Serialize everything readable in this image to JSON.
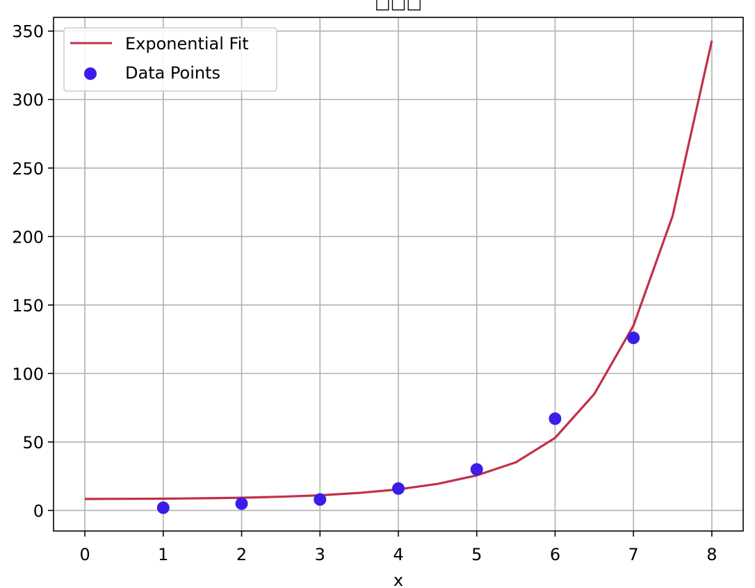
{
  "chart_data": {
    "type": "scatter",
    "title": "□□□",
    "xlabel": "x",
    "ylabel": "",
    "xlim": [
      -0.4,
      8.4
    ],
    "ylim": [
      -15,
      360
    ],
    "x_ticks": [
      0,
      1,
      2,
      3,
      4,
      5,
      6,
      7,
      8
    ],
    "y_ticks": [
      0,
      50,
      100,
      150,
      200,
      250,
      300,
      350
    ],
    "grid": true,
    "legend_position": "top-left",
    "series": [
      {
        "name": "Exponential Fit",
        "kind": "line",
        "color": "#c0304a",
        "x": [
          0,
          0.5,
          1,
          1.5,
          2,
          2.5,
          3,
          3.5,
          4,
          4.5,
          5,
          5.5,
          6,
          6.5,
          7,
          7.5,
          8
        ],
        "y": [
          8.4,
          8.5,
          8.6,
          8.9,
          9.3,
          10.0,
          11.1,
          12.8,
          15.4,
          19.4,
          25.6,
          35.2,
          53.0,
          85.0,
          135.0,
          215.0,
          343.0
        ]
      },
      {
        "name": "Data Points",
        "kind": "scatter",
        "color": "#3a1de8",
        "x": [
          1,
          2,
          3,
          4,
          5,
          6,
          7
        ],
        "y": [
          2,
          5,
          8,
          16,
          30,
          67,
          126
        ]
      }
    ]
  }
}
